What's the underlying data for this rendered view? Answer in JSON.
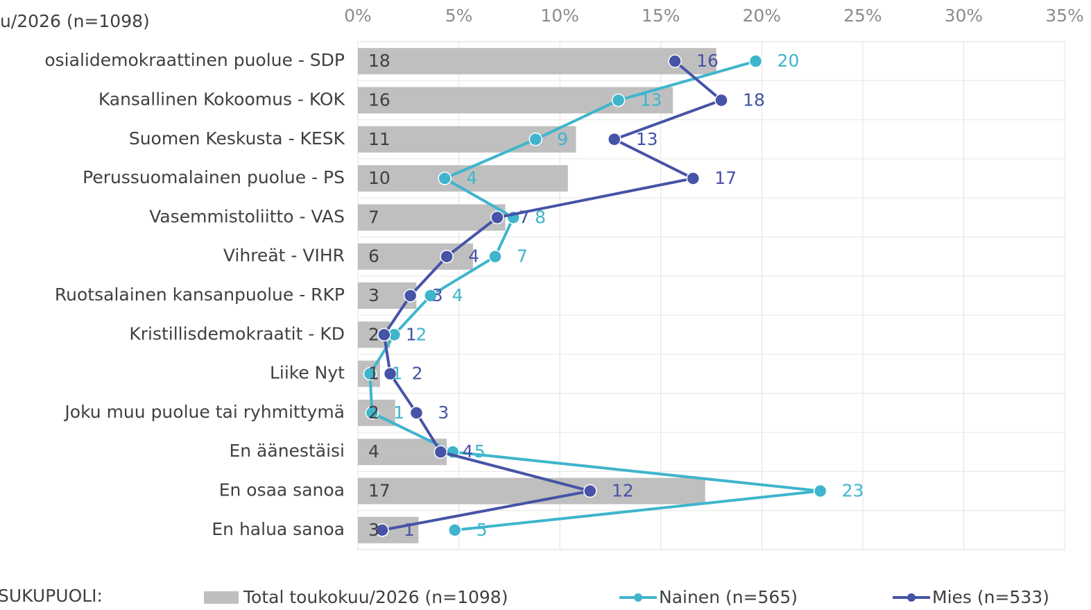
{
  "chart_data": {
    "type": "bar",
    "orientation": "horizontal",
    "title": "u/2026 (n=1098)",
    "legend_title": "SUKUPUOLI:",
    "categories": [
      "osialidemokraattinen puolue - SDP",
      "Kansallinen Kokoomus - KOK",
      "Suomen Keskusta - KESK",
      "Perussuomalainen puolue - PS",
      "Vasemmistoliitto - VAS",
      "Vihreät - VIHR",
      "Ruotsalainen kansanpuolue - RKP",
      "Kristillisdemokraatit - KD",
      "Liike Nyt",
      "Joku muu puolue tai ryhmittymä",
      "En äänestäisi",
      "En osaa sanoa",
      "En halua sanoa"
    ],
    "xlim": [
      0,
      35
    ],
    "xticks": [
      {
        "value": 0,
        "label": "0%"
      },
      {
        "value": 5,
        "label": "5%"
      },
      {
        "value": 10,
        "label": "10%"
      },
      {
        "value": 15,
        "label": "15%"
      },
      {
        "value": 20,
        "label": "20%"
      },
      {
        "value": 25,
        "label": "25%"
      },
      {
        "value": 30,
        "label": "30%"
      },
      {
        "value": 35,
        "label": "35%"
      }
    ],
    "grid": true,
    "legend": "bottom",
    "series": [
      {
        "name": "Total toukokuu/2026 (n=1098)",
        "kind": "bar",
        "color": "#bfbfbf",
        "label_color": "#404040",
        "values": [
          17.75,
          15.6,
          10.8,
          10.4,
          7.3,
          5.7,
          2.9,
          1.6,
          1.1,
          1.85,
          4.4,
          17.2,
          3.0
        ],
        "value_labels": [
          "18",
          "16",
          "11",
          "10",
          "7",
          "6",
          "3",
          "2",
          "1",
          "2",
          "4",
          "17",
          "3"
        ]
      },
      {
        "name": "Nainen (n=565)",
        "kind": "line",
        "color": "#3eb5cc",
        "values": [
          19.7,
          12.9,
          8.8,
          4.3,
          7.7,
          6.8,
          3.6,
          1.8,
          0.6,
          0.7,
          4.7,
          22.9,
          4.8
        ],
        "value_labels": [
          "20",
          "13",
          "9",
          "4",
          "8",
          "7",
          "4",
          "2",
          "1",
          "1",
          "5",
          "23",
          "5"
        ]
      },
      {
        "name": "Mies (n=533)",
        "kind": "line",
        "color": "#4653a6",
        "values": [
          15.7,
          18.0,
          12.7,
          16.6,
          6.9,
          4.4,
          2.6,
          1.3,
          1.6,
          2.9,
          4.1,
          11.5,
          1.2
        ],
        "value_labels": [
          "16",
          "18",
          "13",
          "17",
          "7",
          "4",
          "3",
          "1",
          "2",
          "3",
          "4",
          "12",
          "1"
        ]
      }
    ]
  }
}
